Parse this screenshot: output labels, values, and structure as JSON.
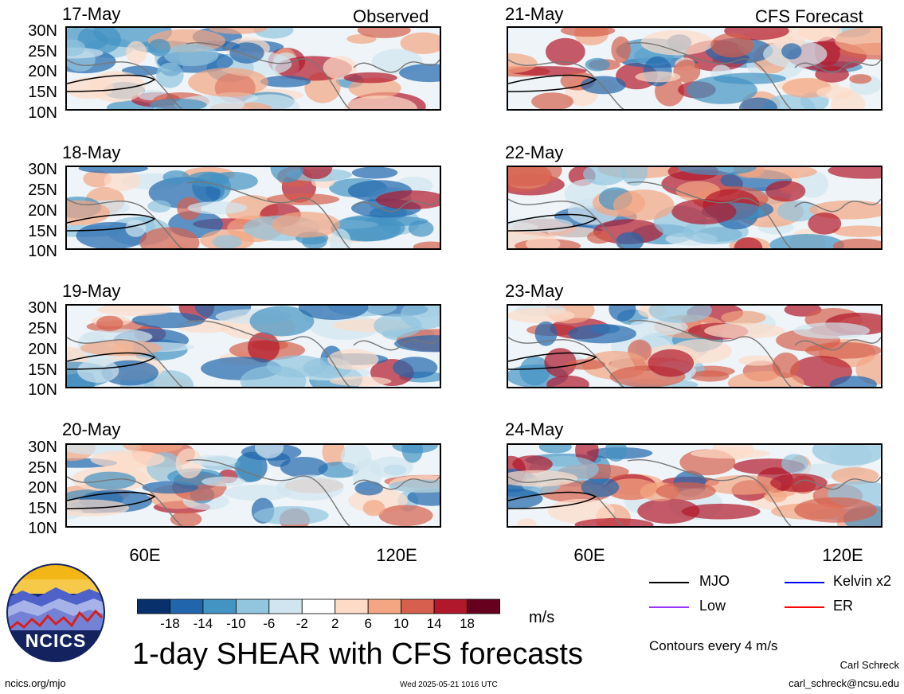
{
  "panels": {
    "observed": [
      {
        "date": "17-May",
        "corner": "Observed"
      },
      {
        "date": "18-May",
        "corner": ""
      },
      {
        "date": "19-May",
        "corner": ""
      },
      {
        "date": "20-May",
        "corner": ""
      }
    ],
    "forecast": [
      {
        "date": "21-May",
        "corner": "CFS Forecast"
      },
      {
        "date": "22-May",
        "corner": ""
      },
      {
        "date": "23-May",
        "corner": ""
      },
      {
        "date": "24-May",
        "corner": ""
      }
    ]
  },
  "axes": {
    "lat_labels": [
      "30N",
      "25N",
      "20N",
      "15N",
      "10N"
    ],
    "lon_labels": [
      "60E",
      "120E"
    ]
  },
  "colorbar": {
    "ticks": [
      "-18",
      "-14",
      "-10",
      "-6",
      "-2",
      "2",
      "6",
      "10",
      "14",
      "18"
    ],
    "units": "m/s",
    "colors": [
      "#08306b",
      "#2166ac",
      "#4393c3",
      "#92c5de",
      "#d1e5f0",
      "#ffffff",
      "#fddbc7",
      "#f4a582",
      "#d6604d",
      "#b2182b",
      "#67001f"
    ]
  },
  "legend": {
    "items": [
      {
        "label": "MJO",
        "color": "#000000"
      },
      {
        "label": "Kelvin x2",
        "color": "#0000ff"
      },
      {
        "label": "Low",
        "color": "#9933ff"
      },
      {
        "label": "ER",
        "color": "#ff0000"
      }
    ],
    "contour_note": "Contours every 4 m/s"
  },
  "logo": {
    "text": "NCICS"
  },
  "title": "1-day SHEAR with CFS forecasts",
  "footer": {
    "url": "ncics.org/mjo",
    "timestamp": "Wed 2025-05-21 1016 UTC",
    "author": "Carl Schreck",
    "email": "carl_schreck@ncsu.edu"
  }
}
